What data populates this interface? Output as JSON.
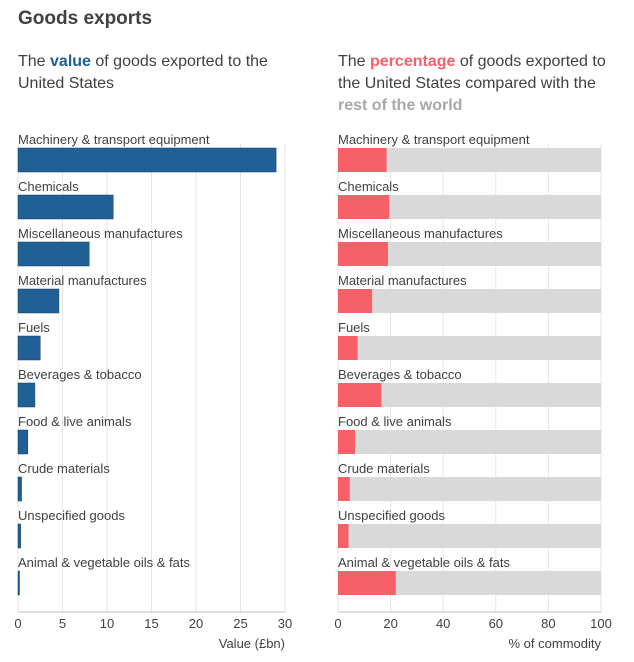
{
  "title": "Goods exports",
  "left_subtitle": {
    "pre": "The ",
    "highlight": "value",
    "post": " of goods exported to the United States"
  },
  "right_subtitle": {
    "pre": "The ",
    "highlight": "percentage",
    "mid": " of goods exported to the United States compared with the ",
    "highlight2": "rest of the world"
  },
  "colors": {
    "value_bar": "#206095",
    "pct_bar": "#f66068",
    "rest_bar": "#d9d9d9",
    "grid": "#e6e6e6"
  },
  "chart_data": [
    {
      "type": "bar",
      "orientation": "horizontal",
      "categories": [
        "Machinery & transport equipment",
        "Chemicals",
        "Miscellaneous manufactures",
        "Material manufactures",
        "Fuels",
        "Beverages & tobacco",
        "Food & live animals",
        "Crude materials",
        "Unspecified goods",
        "Animal & vegetable oils & fats"
      ],
      "values": [
        29.0,
        10.7,
        8.0,
        4.6,
        2.5,
        1.9,
        1.1,
        0.4,
        0.3,
        0.15
      ],
      "xlabel": "Value (£bn)",
      "xlim": [
        0,
        30
      ],
      "xticks": [
        0,
        5,
        10,
        15,
        20,
        25,
        30
      ],
      "grid": true
    },
    {
      "type": "bar",
      "orientation": "horizontal",
      "stacked": true,
      "categories": [
        "Machinery & transport equipment",
        "Chemicals",
        "Miscellaneous manufactures",
        "Material manufactures",
        "Fuels",
        "Beverages & tobacco",
        "Food & live animals",
        "Crude materials",
        "Unspecified goods",
        "Animal & vegetable oils & fats"
      ],
      "series": [
        {
          "values": [
            18.5,
            19.5,
            19.0,
            13.0,
            7.5,
            16.5,
            6.5,
            4.5,
            4.0,
            22.0
          ]
        },
        {
          "values": [
            81.5,
            80.5,
            81.0,
            87.0,
            92.5,
            83.5,
            93.5,
            95.5,
            96.0,
            78.0
          ]
        }
      ],
      "xlabel": "% of commodity",
      "xlim": [
        0,
        100
      ],
      "xticks": [
        0,
        20,
        40,
        60,
        80,
        100
      ],
      "grid": true
    }
  ]
}
